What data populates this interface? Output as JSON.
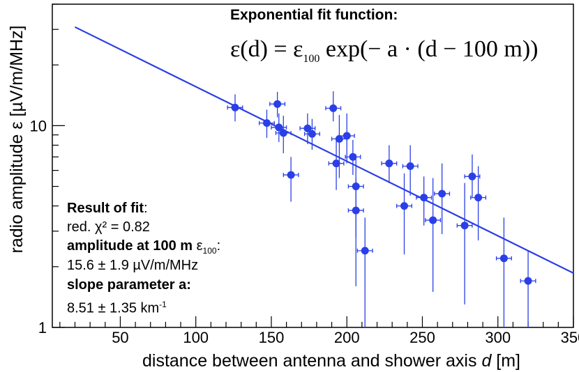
{
  "chart_data": {
    "type": "scatter",
    "xlabel": "distance between antenna and shower axis ",
    "xlabel_var": "d",
    "xlabel_unit": " [m]",
    "ylabel": "radio amplitude ε  [µV/m/MHz]",
    "xlim": [
      5,
      350
    ],
    "ylim": [
      1,
      40
    ],
    "yscale": "log",
    "x_ticks": [
      50,
      100,
      150,
      200,
      250,
      300,
      350
    ],
    "y_ticks": [
      1,
      10
    ],
    "points": [
      {
        "x": 126,
        "y": 12.3,
        "xerr": 5,
        "ylo": 10.5,
        "yhi": 14.3
      },
      {
        "x": 147,
        "y": 10.3,
        "xerr": 5,
        "ylo": 8.7,
        "yhi": 12.0
      },
      {
        "x": 154,
        "y": 12.8,
        "xerr": 5,
        "ylo": 11.0,
        "yhi": 14.7
      },
      {
        "x": 155,
        "y": 9.8,
        "xerr": 5,
        "ylo": 8.3,
        "yhi": 11.5
      },
      {
        "x": 158,
        "y": 9.2,
        "xerr": 5,
        "ylo": 7.3,
        "yhi": 11.2
      },
      {
        "x": 163,
        "y": 5.7,
        "xerr": 5,
        "ylo": 4.2,
        "yhi": 7.0
      },
      {
        "x": 174,
        "y": 9.7,
        "xerr": 5,
        "ylo": 8.1,
        "yhi": 11.5
      },
      {
        "x": 177,
        "y": 9.1,
        "xerr": 5,
        "ylo": 7.6,
        "yhi": 10.8
      },
      {
        "x": 191,
        "y": 12.2,
        "xerr": 5,
        "ylo": 10.5,
        "yhi": 14.8
      },
      {
        "x": 193,
        "y": 6.5,
        "xerr": 5,
        "ylo": 4.8,
        "yhi": 8.5
      },
      {
        "x": 195,
        "y": 8.6,
        "xerr": 5,
        "ylo": 5.5,
        "yhi": 11.3
      },
      {
        "x": 200,
        "y": 8.9,
        "xerr": 5,
        "ylo": 6.5,
        "yhi": 11.5
      },
      {
        "x": 204,
        "y": 7.0,
        "xerr": 5,
        "ylo": 5.7,
        "yhi": 8.5
      },
      {
        "x": 206,
        "y": 5.0,
        "xerr": 5,
        "ylo": 2.8,
        "yhi": 7.2
      },
      {
        "x": 206,
        "y": 3.8,
        "xerr": 5,
        "ylo": 1.6,
        "yhi": 5.5
      },
      {
        "x": 212,
        "y": 2.4,
        "xerr": 5,
        "ylo": 0.9,
        "yhi": 3.5
      },
      {
        "x": 228,
        "y": 6.5,
        "xerr": 5,
        "ylo": 5.2,
        "yhi": 8.0
      },
      {
        "x": 238,
        "y": 4.0,
        "xerr": 5,
        "ylo": 2.3,
        "yhi": 5.8
      },
      {
        "x": 242,
        "y": 6.3,
        "xerr": 5,
        "ylo": 4.5,
        "yhi": 8.0
      },
      {
        "x": 251,
        "y": 4.4,
        "xerr": 5,
        "ylo": 3.2,
        "yhi": 5.6
      },
      {
        "x": 257,
        "y": 3.4,
        "xerr": 5,
        "ylo": 1.5,
        "yhi": 5.5
      },
      {
        "x": 263,
        "y": 4.6,
        "xerr": 5,
        "ylo": 2.9,
        "yhi": 6.5
      },
      {
        "x": 278,
        "y": 3.2,
        "xerr": 5,
        "ylo": 1.3,
        "yhi": 5.2
      },
      {
        "x": 283,
        "y": 5.6,
        "xerr": 5,
        "ylo": 4.4,
        "yhi": 7.2
      },
      {
        "x": 287,
        "y": 4.4,
        "xerr": 5,
        "ylo": 2.7,
        "yhi": 6.3
      },
      {
        "x": 304,
        "y": 2.2,
        "xerr": 5,
        "ylo": 0.9,
        "yhi": 3.5
      },
      {
        "x": 320,
        "y": 1.7,
        "xerr": 5,
        "ylo": 0.9,
        "yhi": 2.4
      }
    ],
    "fit": {
      "x_start": 20,
      "x_end": 350,
      "amplitude_100": 15.6,
      "slope_per_m": 0.00851
    }
  },
  "colors": {
    "series": "#2a3fe6",
    "axis": "#000000"
  },
  "annotation_fit_title": "Exponential fit function:",
  "formula": {
    "lhs": "ε(d) = ε",
    "sub100": "100",
    "rhs": " exp(− a · (d − 100 m))"
  },
  "result": {
    "heading": "Result of fit",
    "colon": ":",
    "chi2": "red. χ² = 0.82",
    "amp_heading": "amplitude at 100 m",
    "amp_symbol": " ε",
    "amp_sub": "100",
    "amp_colon": ":",
    "amp_value": "15.6  ± 1.9 µV/m/MHz",
    "slope_heading": "slope parameter",
    "slope_symbol": " a:",
    "slope_value": "8.51 ± 1.35 km",
    "slope_exp": "-1"
  }
}
